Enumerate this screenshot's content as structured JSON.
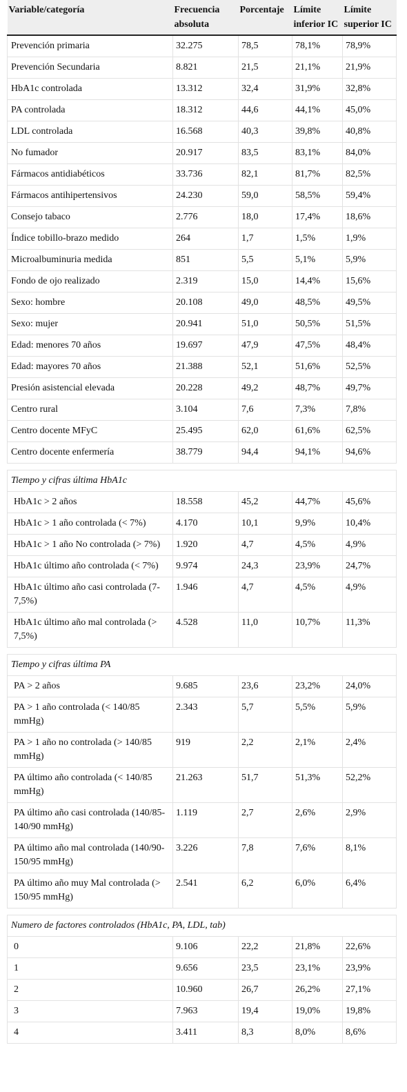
{
  "table": {
    "header": [
      "Variable/categoría",
      "Frecuencia absoluta",
      "Porcentaje",
      "Límite inferior IC",
      "Límite superior IC"
    ],
    "groups": [
      {
        "rows": [
          [
            "Prevención primaria",
            "32.275",
            "78,5",
            "78,1%",
            "78,9%"
          ],
          [
            "Prevención Secundaria",
            "8.821",
            "21,5",
            "21,1%",
            "21,9%"
          ],
          [
            "HbA1c controlada",
            "13.312",
            "32,4",
            "31,9%",
            "32,8%"
          ],
          [
            "PA controlada",
            "18.312",
            "44,6",
            "44,1%",
            "45,0%"
          ],
          [
            "LDL controlada",
            "16.568",
            "40,3",
            "39,8%",
            "40,8%"
          ],
          [
            "No fumador",
            "20.917",
            "83,5",
            "83,1%",
            "84,0%"
          ],
          [
            "Fármacos antidiabéticos",
            "33.736",
            "82,1",
            "81,7%",
            "82,5%"
          ],
          [
            "Fármacos antihipertensivos",
            "24.230",
            "59,0",
            "58,5%",
            "59,4%"
          ],
          [
            "Consejo tabaco",
            "2.776",
            "18,0",
            "17,4%",
            "18,6%"
          ],
          [
            "Índice tobillo-brazo medido",
            "264",
            "1,7",
            "1,5%",
            "1,9%"
          ],
          [
            "Microalbuminuria medida",
            "851",
            "5,5",
            "5,1%",
            "5,9%"
          ],
          [
            "Fondo de ojo realizado",
            "2.319",
            "15,0",
            "14,4%",
            "15,6%"
          ],
          [
            "Sexo: hombre",
            "20.108",
            "49,0",
            "48,5%",
            "49,5%"
          ],
          [
            "Sexo: mujer",
            "20.941",
            "51,0",
            "50,5%",
            "51,5%"
          ],
          [
            "Edad: menores 70 años",
            "19.697",
            "47,9",
            "47,5%",
            "48,4%"
          ],
          [
            "Edad: mayores 70 años",
            "21.388",
            "52,1",
            "51,6%",
            "52,5%"
          ],
          [
            "Presión asistencial elevada",
            "20.228",
            "49,2",
            "48,7%",
            "49,7%"
          ],
          [
            "Centro rural",
            "3.104",
            "7,6",
            "7,3%",
            "7,8%"
          ],
          [
            "Centro docente MFyC",
            "25.495",
            "62,0",
            "61,6%",
            "62,5%"
          ],
          [
            "Centro docente enfermería",
            "38.779",
            "94,4",
            "94,1%",
            "94,6%"
          ]
        ]
      },
      {
        "title": "Tiempo y cifras última HbA1c",
        "rows": [
          [
            "HbA1c > 2 años",
            "18.558",
            "45,2",
            "44,7%",
            "45,6%"
          ],
          [
            "HbA1c > 1 año controlada (< 7%)",
            "4.170",
            "10,1",
            "9,9%",
            "10,4%"
          ],
          [
            "HbA1c > 1 año No controlada (> 7%)",
            "1.920",
            "4,7",
            "4,5%",
            "4,9%"
          ],
          [
            "HbA1c último año controlada (< 7%)",
            "9.974",
            "24,3",
            "23,9%",
            "24,7%"
          ],
          [
            "HbA1c último año casi controlada (7-7,5%)",
            "1.946",
            "4,7",
            "4,5%",
            "4,9%"
          ],
          [
            "HbA1c último año mal controlada (> 7,5%)",
            "4.528",
            "11,0",
            "10,7%",
            "11,3%"
          ]
        ]
      },
      {
        "title": "Tiempo y cifras última PA",
        "rows": [
          [
            "PA > 2 años",
            "9.685",
            "23,6",
            "23,2%",
            "24,0%"
          ],
          [
            "PA > 1 año controlada (< 140/85 mmHg)",
            "2.343",
            "5,7",
            "5,5%",
            "5,9%"
          ],
          [
            "PA > 1 año no controlada (> 140/85 mmHg)",
            "919",
            "2,2",
            "2,1%",
            "2,4%"
          ],
          [
            "PA último año controlada (< 140/85 mmHg)",
            "21.263",
            "51,7",
            "51,3%",
            "52,2%"
          ],
          [
            "PA último año casi controlada (140/85-140/90 mmHg)",
            "1.119",
            "2,7",
            "2,6%",
            "2,9%"
          ],
          [
            "PA último año mal controlada (140/90-150/95 mmHg)",
            "3.226",
            "7,8",
            "7,6%",
            "8,1%"
          ],
          [
            "PA último año muy Mal controlada (> 150/95 mmHg)",
            "2.541",
            "6,2",
            "6,0%",
            "6,4%"
          ]
        ]
      },
      {
        "title": "Numero de factores controlados (HbA1c, PA, LDL, tab)",
        "rows": [
          [
            "0",
            "9.106",
            "22,2",
            "21,8%",
            "22,6%"
          ],
          [
            "1",
            "9.656",
            "23,5",
            "23,1%",
            "23,9%"
          ],
          [
            "2",
            "10.960",
            "26,7",
            "26,2%",
            "27,1%"
          ],
          [
            "3",
            "7.963",
            "19,4",
            "19,0%",
            "19,8%"
          ],
          [
            "4",
            "3.411",
            "8,3",
            "8,0%",
            "8,6%"
          ]
        ]
      }
    ]
  }
}
